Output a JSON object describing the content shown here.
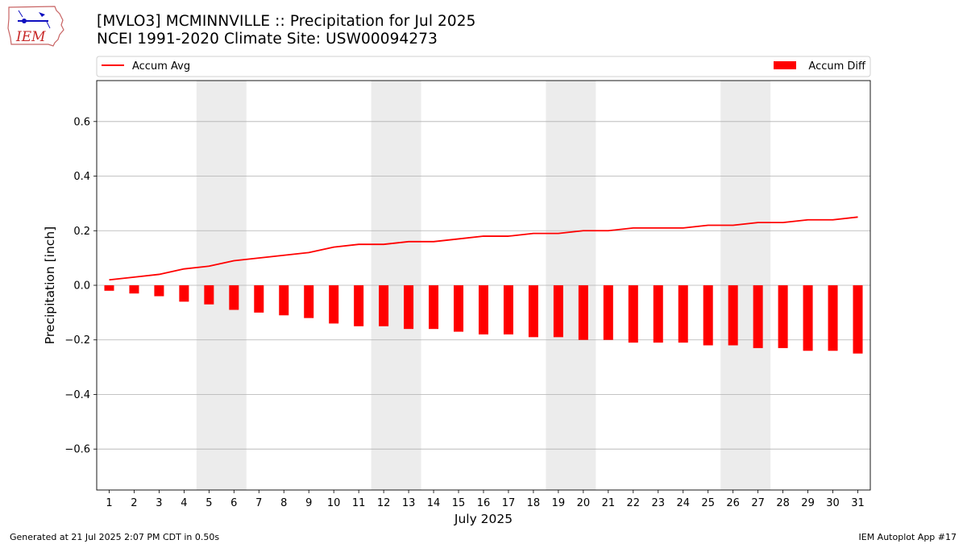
{
  "header": {
    "title_line1": "[MVLO3] MCMINNVILLE :: Precipitation for Jul 2025",
    "title_line2": "NCEI 1991-2020 Climate Site: USW00094273"
  },
  "logo": {
    "text": "IEM",
    "icon": "iowa-state-outline-logo"
  },
  "footer": {
    "generated": "Generated at 21 Jul 2025 2:07 PM CDT in 0.50s",
    "app": "IEM Autoplot App #17"
  },
  "chart_data": {
    "type": "bar",
    "xlabel": "July 2025",
    "ylabel": "Precipitation [inch]",
    "ylim": [
      -0.75,
      0.75
    ],
    "yticks": [
      -0.6,
      -0.4,
      -0.2,
      0.0,
      0.2,
      0.4,
      0.6
    ],
    "ytick_labels": [
      "−0.6",
      "−0.4",
      "−0.2",
      "0.0",
      "0.2",
      "0.4",
      "0.6"
    ],
    "xlim": [
      0.5,
      31.5
    ],
    "categories": [
      "1",
      "2",
      "3",
      "4",
      "5",
      "6",
      "7",
      "8",
      "9",
      "10",
      "11",
      "12",
      "13",
      "14",
      "15",
      "16",
      "17",
      "18",
      "19",
      "20",
      "21",
      "22",
      "23",
      "24",
      "25",
      "26",
      "27",
      "28",
      "29",
      "30",
      "31"
    ],
    "weekend_shading": [
      [
        4.5,
        6.5
      ],
      [
        11.5,
        13.5
      ],
      [
        18.5,
        20.5
      ],
      [
        25.5,
        27.5
      ]
    ],
    "grid": "y",
    "legend": {
      "left": "Accum Avg",
      "right": "Accum Diff",
      "placement": "top"
    },
    "colors": {
      "line": "#ff0000",
      "bar": "#ff0000",
      "weekend": "#ececec",
      "grid": "#b0b0b0"
    },
    "series": [
      {
        "name": "Accum Avg",
        "type": "line",
        "values": [
          0.02,
          0.03,
          0.04,
          0.06,
          0.07,
          0.09,
          0.1,
          0.11,
          0.12,
          0.14,
          0.15,
          0.15,
          0.16,
          0.16,
          0.17,
          0.18,
          0.18,
          0.19,
          0.19,
          0.2,
          0.2,
          0.21,
          0.21,
          0.21,
          0.22,
          0.22,
          0.23,
          0.23,
          0.24,
          0.24,
          0.25
        ]
      },
      {
        "name": "Accum Diff",
        "type": "bar",
        "values": [
          -0.02,
          -0.03,
          -0.04,
          -0.06,
          -0.07,
          -0.09,
          -0.1,
          -0.11,
          -0.12,
          -0.14,
          -0.15,
          -0.15,
          -0.16,
          -0.16,
          -0.17,
          -0.18,
          -0.18,
          -0.19,
          -0.19,
          -0.2,
          -0.2,
          -0.21,
          -0.21,
          -0.21,
          -0.22,
          -0.22,
          -0.23,
          -0.23,
          -0.24,
          -0.24,
          -0.25
        ]
      }
    ]
  }
}
